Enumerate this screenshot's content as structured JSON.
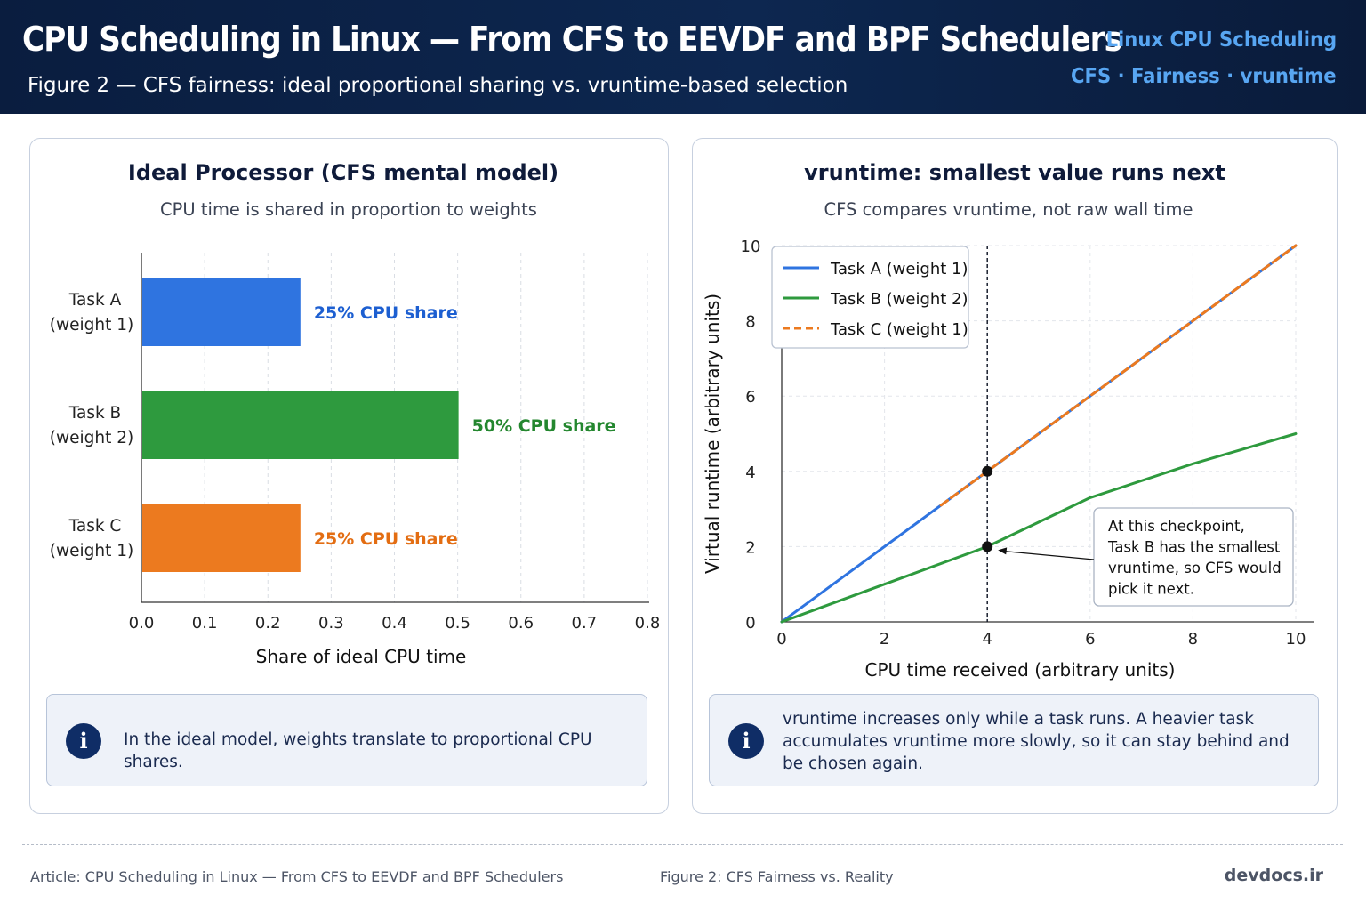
{
  "header": {
    "title": "CPU Scheduling in Linux — From CFS to EEVDF and BPF Schedulers",
    "subtitle": "Figure 2 — CFS fairness: ideal proportional sharing vs. vruntime-based selection",
    "tag_line1": "Linux CPU Scheduling",
    "tag_line2": "CFS · Fairness · vruntime"
  },
  "left_panel": {
    "info_text": "In the ideal model, weights translate to proportional CPU shares."
  },
  "right_panel": {
    "info_text": "vruntime increases only while a task runs. A heavier task accumulates vruntime more slowly, so it can stay behind and be chosen again."
  },
  "info_icon": "info-icon",
  "footer": {
    "article": "Article: CPU Scheduling in Linux — From CFS to EEVDF and BPF Schedulers",
    "figure": "Figure 2: CFS Fairness vs. Reality",
    "site": "devdocs.ir"
  },
  "chart_data": [
    {
      "type": "bar",
      "orientation": "horizontal",
      "title": "Ideal Processor (CFS mental model)",
      "subtitle": "CPU time is shared in proportion to weights",
      "xlabel": "Share of ideal CPU time",
      "ylabel": "",
      "xlim": [
        0.0,
        0.8
      ],
      "xticks": [
        "0.0",
        "0.1",
        "0.2",
        "0.3",
        "0.4",
        "0.5",
        "0.6",
        "0.7",
        "0.8"
      ],
      "grid": "vertical dashed",
      "categories": [
        [
          "Task A",
          "(weight 1)"
        ],
        [
          "Task B",
          "(weight 2)"
        ],
        [
          "Task C",
          "(weight 1)"
        ]
      ],
      "values": [
        0.25,
        0.5,
        0.25
      ],
      "data_labels": [
        "25% CPU share",
        "50% CPU share",
        "25% CPU share"
      ],
      "colors": [
        "#2f74e0",
        "#2e9a3e",
        "#ec7a1f"
      ]
    },
    {
      "type": "line",
      "title": "vruntime: smallest value runs next",
      "subtitle": "CFS compares vruntime, not raw wall time",
      "xlabel": "CPU time received (arbitrary units)",
      "ylabel": "Virtual runtime (arbitrary units)",
      "xlim": [
        0,
        10
      ],
      "ylim": [
        0,
        10
      ],
      "xticks": [
        "0",
        "2",
        "4",
        "6",
        "8",
        "10"
      ],
      "yticks": [
        "0",
        "2",
        "4",
        "6",
        "8",
        "10"
      ],
      "grid": "dashed",
      "legend_position": "top-left",
      "series": [
        {
          "name": "Task A (weight 1)",
          "color": "#2f74e0",
          "style": "solid",
          "x": [
            0,
            10
          ],
          "y": [
            0,
            10
          ]
        },
        {
          "name": "Task B (weight 2)",
          "color": "#2e9a3e",
          "style": "solid",
          "x": [
            0,
            4,
            6,
            8,
            10
          ],
          "y": [
            0,
            2,
            3.3,
            4.2,
            5
          ]
        },
        {
          "name": "Task C (weight 1)",
          "color": "#ec7a1f",
          "style": "dashed",
          "x": [
            3.1,
            10
          ],
          "y": [
            3.1,
            10
          ]
        }
      ],
      "checkpoint_x": 4,
      "points": [
        {
          "x": 4,
          "y": 4
        },
        {
          "x": 4,
          "y": 2
        }
      ],
      "annotation": {
        "lines": [
          "At this checkpoint,",
          "Task B has the smallest",
          "vruntime, so CFS would",
          "pick it next."
        ],
        "target": {
          "x": 4,
          "y": 2
        }
      }
    }
  ]
}
